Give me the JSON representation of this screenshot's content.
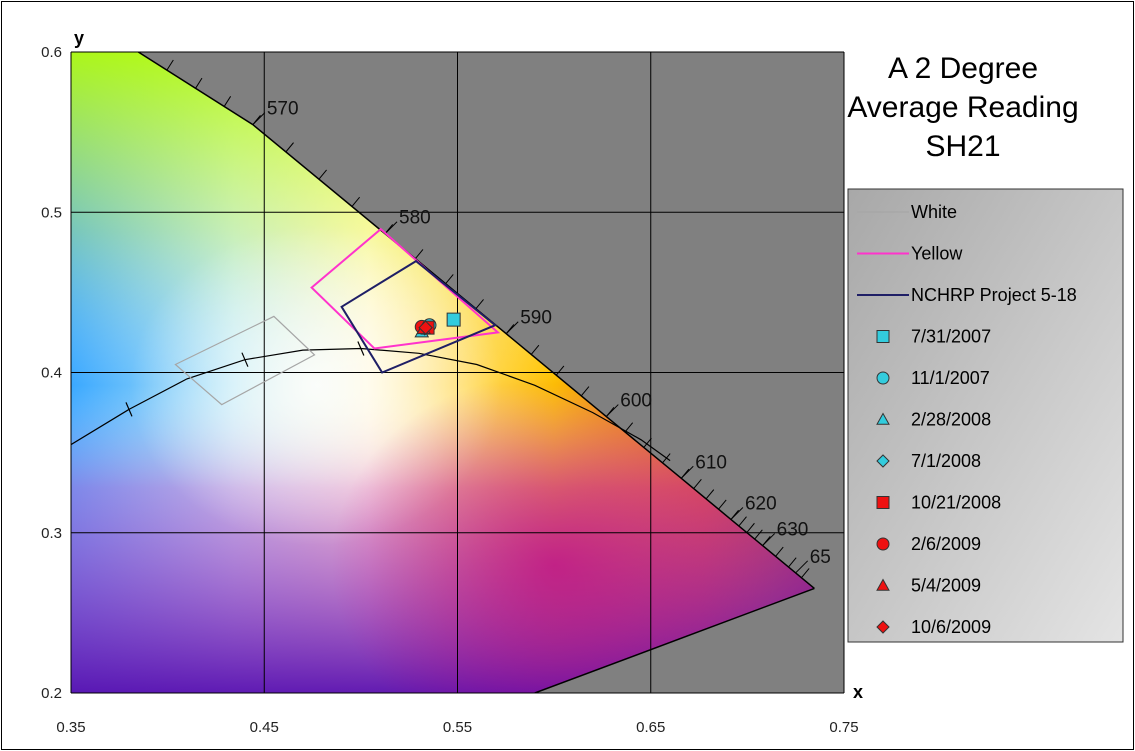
{
  "chart_data": {
    "type": "scatter",
    "title": [
      "A 2 Degree",
      "Average Reading",
      "SH21"
    ],
    "xlabel": "x",
    "ylabel": "y",
    "xlim": [
      0.35,
      0.75
    ],
    "ylim": [
      0.2,
      0.6
    ],
    "x_ticks": [
      0.35,
      0.45,
      0.55,
      0.65,
      0.75
    ],
    "x_tick_labels": [
      "0.35",
      "0.45",
      "0.55",
      "0.65",
      "0.75"
    ],
    "y_ticks": [
      0.2,
      0.3,
      0.4,
      0.5,
      0.6
    ],
    "y_tick_labels": [
      "0.2",
      "0.3",
      "0.4",
      "0.5",
      "0.6"
    ],
    "grid": true,
    "legend_position": "right",
    "spectral_locus": [
      {
        "x": 0.3848,
        "y": 0.6
      },
      {
        "x": 0.4441,
        "y": 0.5547
      },
      {
        "x": 0.5125,
        "y": 0.4866
      },
      {
        "x": 0.5752,
        "y": 0.4242
      },
      {
        "x": 0.627,
        "y": 0.3725
      },
      {
        "x": 0.6658,
        "y": 0.334
      },
      {
        "x": 0.6915,
        "y": 0.3083
      },
      {
        "x": 0.7079,
        "y": 0.292
      },
      {
        "x": 0.7347,
        "y": 0.2653
      }
    ],
    "purple_line": [
      {
        "x": 0.7347,
        "y": 0.2653
      },
      {
        "x": 0.59,
        "y": 0.2
      }
    ],
    "wavelength_labels": [
      {
        "label": "570",
        "x": 0.4441,
        "y": 0.5547
      },
      {
        "label": "580",
        "x": 0.5125,
        "y": 0.4866
      },
      {
        "label": "590",
        "x": 0.5752,
        "y": 0.4242
      },
      {
        "label": "600",
        "x": 0.627,
        "y": 0.3725
      },
      {
        "label": "610",
        "x": 0.6658,
        "y": 0.334
      },
      {
        "label": "620",
        "x": 0.6915,
        "y": 0.3083
      },
      {
        "label": "630",
        "x": 0.7079,
        "y": 0.292
      },
      {
        "label": "65",
        "x": 0.725,
        "y": 0.275
      }
    ],
    "planckian_locus": [
      {
        "x": 0.35,
        "y": 0.355
      },
      {
        "x": 0.38,
        "y": 0.377
      },
      {
        "x": 0.41,
        "y": 0.396
      },
      {
        "x": 0.44,
        "y": 0.408
      },
      {
        "x": 0.47,
        "y": 0.414
      },
      {
        "x": 0.5,
        "y": 0.415
      },
      {
        "x": 0.53,
        "y": 0.412
      },
      {
        "x": 0.56,
        "y": 0.405
      },
      {
        "x": 0.59,
        "y": 0.392
      },
      {
        "x": 0.62,
        "y": 0.375
      },
      {
        "x": 0.645,
        "y": 0.358
      },
      {
        "x": 0.66,
        "y": 0.345
      }
    ],
    "regions": [
      {
        "name": "White",
        "color": "#a6a6a6",
        "points": [
          {
            "x": 0.404,
            "y": 0.405
          },
          {
            "x": 0.455,
            "y": 0.435
          },
          {
            "x": 0.476,
            "y": 0.411
          },
          {
            "x": 0.428,
            "y": 0.38
          }
        ]
      },
      {
        "name": "Yellow",
        "color": "#ff33cc",
        "points": [
          {
            "x": 0.4745,
            "y": 0.453
          },
          {
            "x": 0.5103,
            "y": 0.4895
          },
          {
            "x": 0.5709,
            "y": 0.425
          },
          {
            "x": 0.507,
            "y": 0.415
          }
        ]
      },
      {
        "name": "NCHRP Project 5-18",
        "color": "#1f1f66",
        "points": [
          {
            "x": 0.49,
            "y": 0.441
          },
          {
            "x": 0.5285,
            "y": 0.4695
          },
          {
            "x": 0.5695,
            "y": 0.4295
          },
          {
            "x": 0.511,
            "y": 0.4
          }
        ]
      }
    ],
    "series": [
      {
        "name": "7/31/2007",
        "marker": "square",
        "color": "#33ccdd",
        "x": [
          0.548
        ],
        "y": [
          0.433
        ]
      },
      {
        "name": "11/1/2007",
        "marker": "circle",
        "color": "#33ccdd",
        "x": [
          0.5355
        ],
        "y": [
          0.4295
        ]
      },
      {
        "name": "2/28/2008",
        "marker": "triangle",
        "color": "#33ccdd",
        "x": [
          0.5315
        ],
        "y": [
          0.4255
        ]
      },
      {
        "name": "7/1/2008",
        "marker": "diamond",
        "color": "#33ccdd",
        "x": [
          0.533
        ],
        "y": [
          0.4275
        ]
      },
      {
        "name": "10/21/2008",
        "marker": "square",
        "color": "#ee1111",
        "x": [
          0.5345
        ],
        "y": [
          0.428
        ]
      },
      {
        "name": "2/6/2009",
        "marker": "circle",
        "color": "#ee1111",
        "x": [
          0.5315
        ],
        "y": [
          0.4285
        ]
      },
      {
        "name": "5/4/2009",
        "marker": "triangle",
        "color": "#ee1111",
        "x": [
          0.5325
        ],
        "y": [
          0.4275
        ]
      },
      {
        "name": "10/6/2009",
        "marker": "diamond",
        "color": "#ee1111",
        "x": [
          0.5335
        ],
        "y": [
          0.428
        ]
      }
    ]
  }
}
